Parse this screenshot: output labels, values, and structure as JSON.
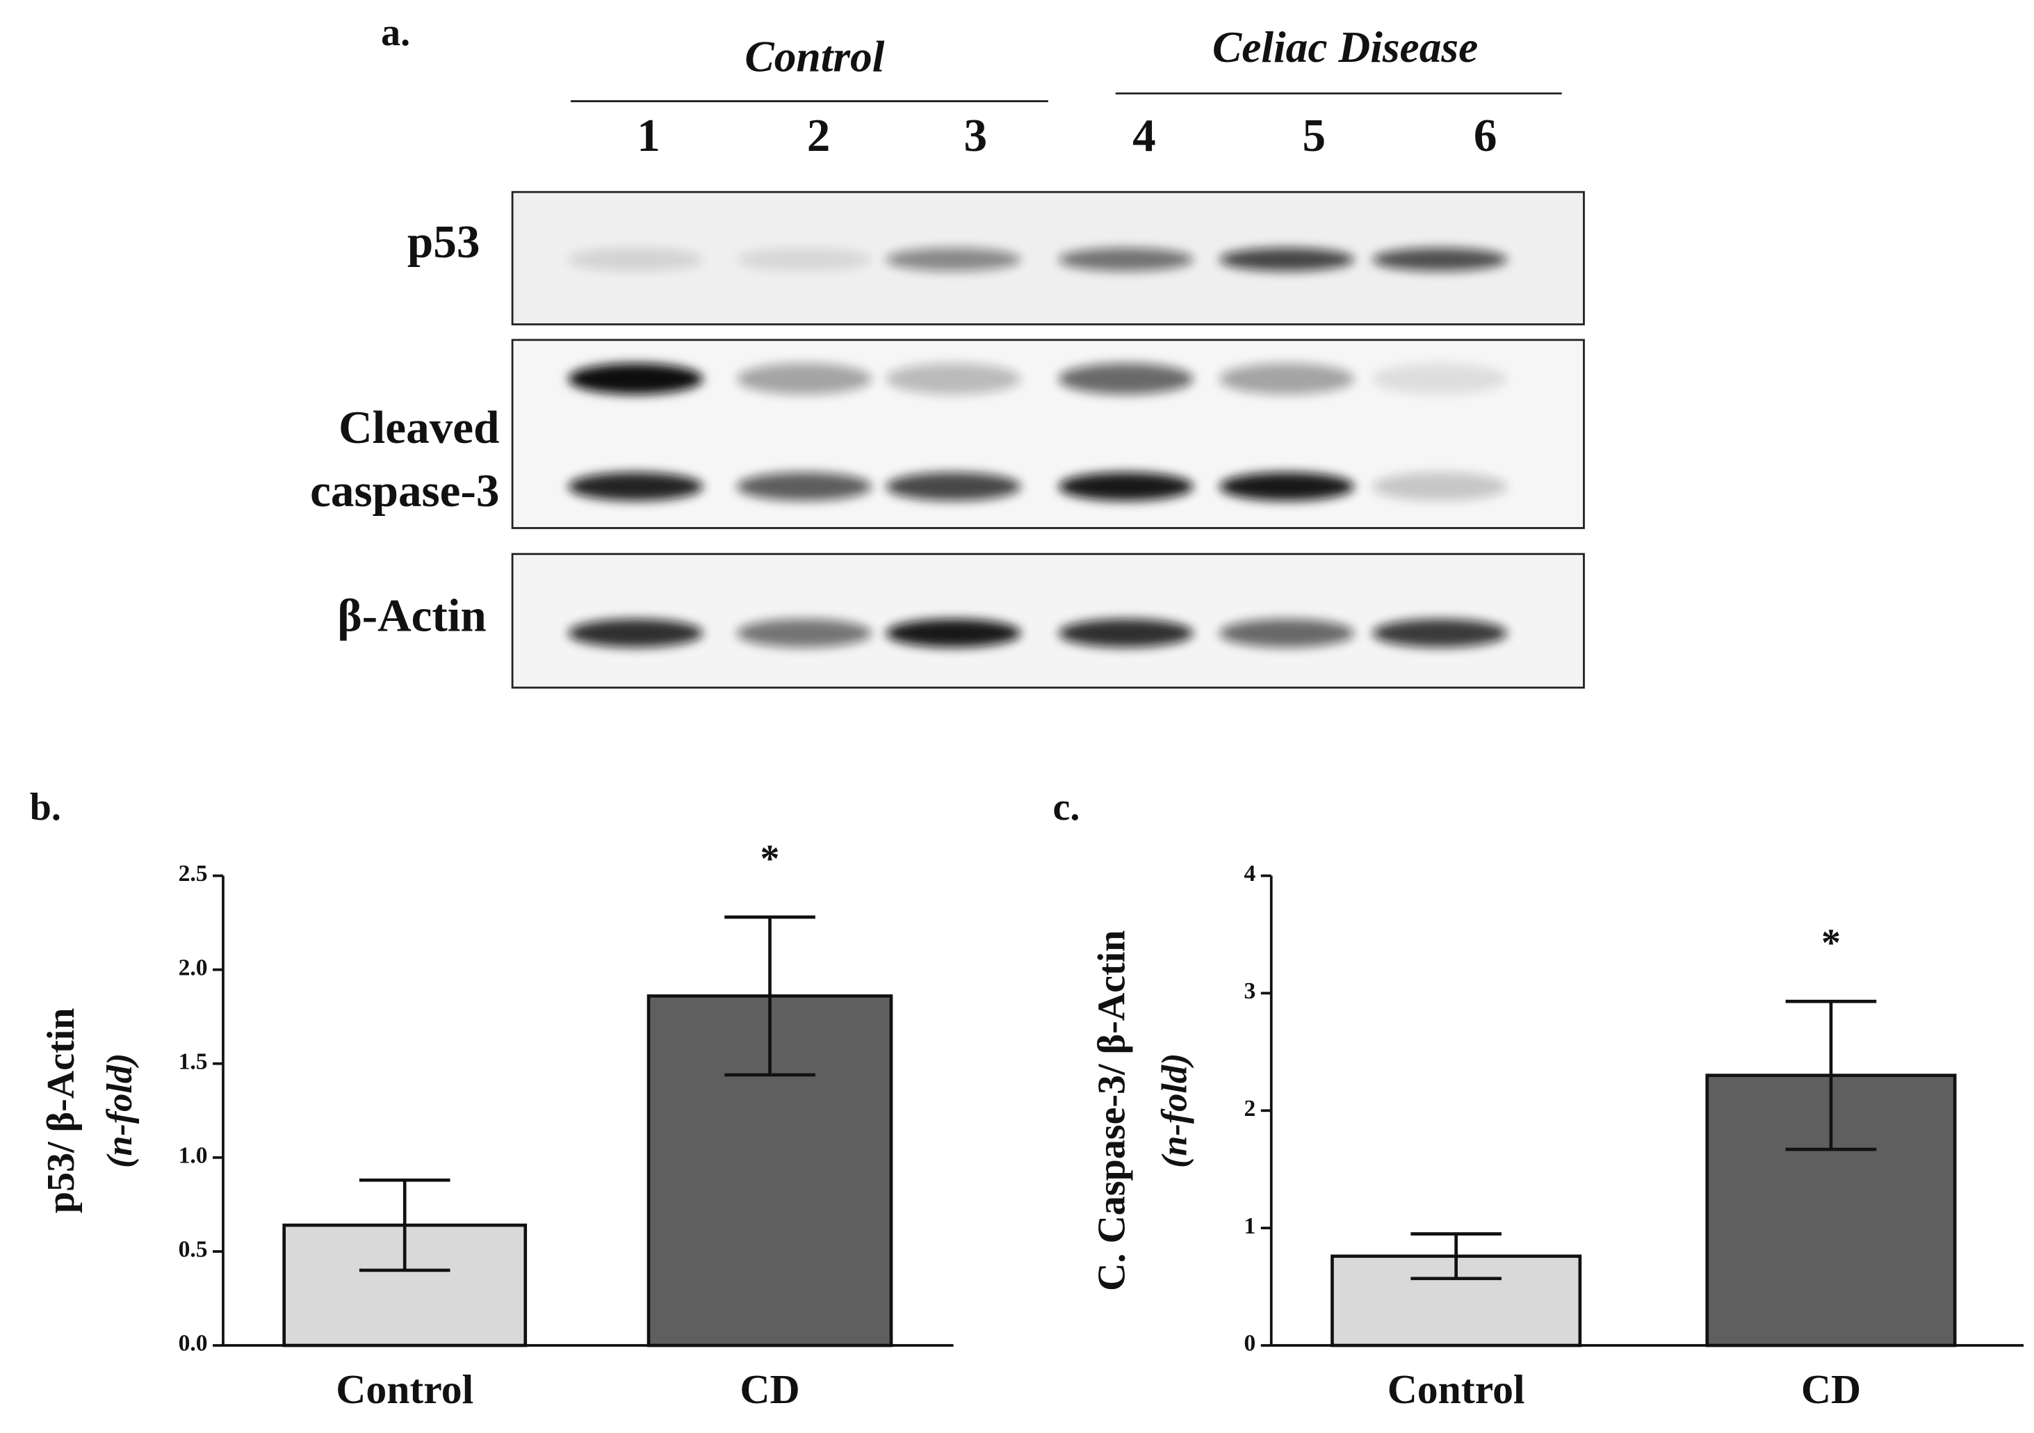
{
  "blot": {
    "title": "a.",
    "groups": [
      "Control",
      "Celiac Disease"
    ],
    "lanes": [
      "1",
      "2",
      "3",
      "4",
      "5",
      "6"
    ],
    "rows": [
      [
        "p53"
      ],
      [
        "Cleaved",
        "caspase-3"
      ],
      [
        "β-Actin"
      ]
    ]
  },
  "chart_data": [
    {
      "type": "bar",
      "title": "b.",
      "ylabel": "p53/ β-Actin",
      "y_unit": "(n-fold)",
      "categories": [
        "Control",
        "CD"
      ],
      "values": [
        0.64,
        1.86
      ],
      "errors": [
        0.24,
        0.42
      ],
      "colors": [
        "#d9d9d9",
        "#5f5f5f"
      ],
      "annotations": [
        "",
        "*"
      ],
      "ylim": [
        0,
        2.5
      ],
      "yticks": [
        {
          "value": 0,
          "label": "0.0"
        },
        0.5,
        {
          "value": 1,
          "label": "1.0"
        },
        1.5,
        {
          "value": 2,
          "label": "2.0"
        },
        2.5
      ]
    },
    {
      "type": "bar",
      "title": "c.",
      "ylabel": "C. Caspase-3/ β-Actin",
      "y_unit": "(n-fold)",
      "categories": [
        "Control",
        "CD"
      ],
      "values": [
        0.76,
        2.3
      ],
      "errors": [
        0.19,
        0.63
      ],
      "colors": [
        "#d9d9d9",
        "#5f5f5f"
      ],
      "annotations": [
        null,
        "*"
      ],
      "ylim": [
        0,
        4
      ],
      "yticks": [
        0,
        1,
        2,
        3,
        4
      ]
    }
  ]
}
